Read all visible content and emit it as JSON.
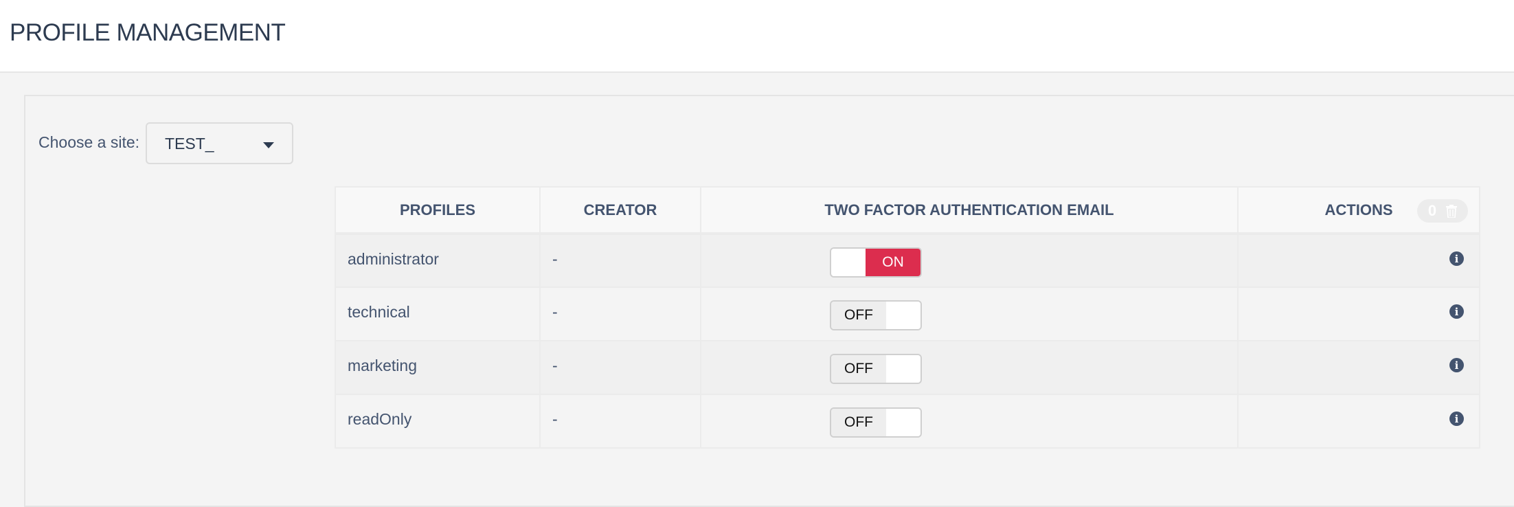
{
  "header": {
    "title": "PROFILE MANAGEMENT"
  },
  "site": {
    "label": "Choose a site:",
    "selected": "TEST_"
  },
  "table": {
    "columns": [
      "PROFILES",
      "CREATOR",
      "TWO FACTOR AUTHENTICATION EMAIL",
      "ACTIONS"
    ],
    "selected_count": "0",
    "rows": [
      {
        "profile": "administrator",
        "creator": "-",
        "two_factor": "ON"
      },
      {
        "profile": "technical",
        "creator": "-",
        "two_factor": "OFF"
      },
      {
        "profile": "marketing",
        "creator": "-",
        "two_factor": "OFF"
      },
      {
        "profile": "readOnly",
        "creator": "-",
        "two_factor": "OFF"
      }
    ]
  },
  "icons": {
    "row_action": "info-circle-icon",
    "bulk_delete": "trash-icon",
    "select": "caret-down-icon"
  },
  "colors": {
    "toggle_on": "#dc2d4e",
    "text": "#44546f"
  }
}
